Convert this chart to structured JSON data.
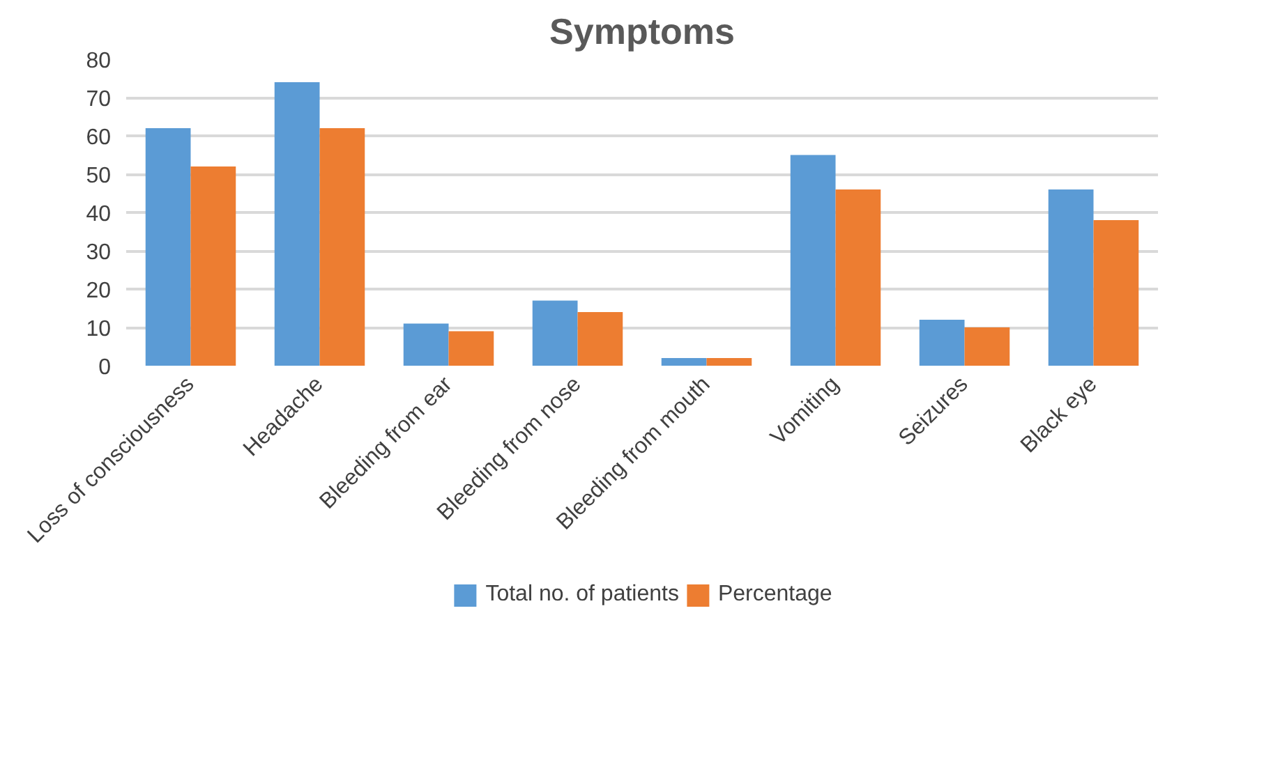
{
  "chart_data": {
    "type": "bar",
    "title": "Symptoms",
    "categories": [
      "Loss of consciousness",
      "Headache",
      "Bleeding from ear",
      "Bleeding from nose",
      "Bleeding from mouth",
      "Vomiting",
      "Seizures",
      "Black eye"
    ],
    "series": [
      {
        "name": "Total no. of patients",
        "color": "#5b9bd5",
        "values": [
          62,
          74,
          11,
          17,
          2,
          55,
          12,
          46
        ]
      },
      {
        "name": "Percentage",
        "color": "#ed7d31",
        "values": [
          52,
          62,
          9,
          14,
          2,
          46,
          10,
          38
        ]
      }
    ],
    "ylim": [
      0,
      80
    ],
    "yticks": [
      0,
      10,
      20,
      30,
      40,
      50,
      60,
      70,
      80
    ],
    "grid": "y",
    "legend": "bottom"
  }
}
